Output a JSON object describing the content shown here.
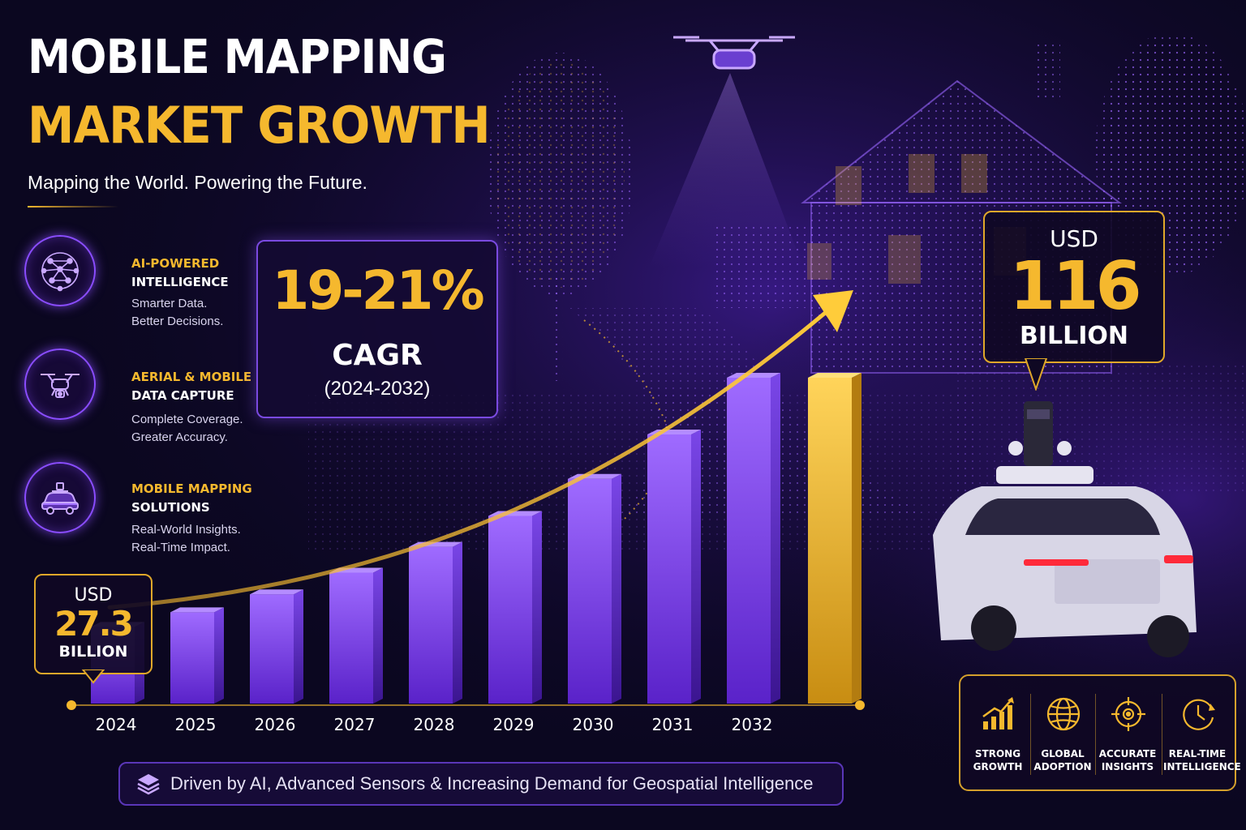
{
  "header": {
    "title_line1": "MOBILE MAPPING",
    "title_line2": "MARKET GROWTH",
    "subtitle": "Mapping the World. Powering the Future."
  },
  "features": [
    {
      "icon": "neural-network-icon",
      "title_accent": "AI-POWERED",
      "title": "INTELLIGENCE",
      "desc1": "Smarter Data.",
      "desc2": "Better Decisions."
    },
    {
      "icon": "drone-icon",
      "title_accent": "AERIAL & MOBILE",
      "title": "DATA CAPTURE",
      "desc1": "Complete Coverage.",
      "desc2": "Greater Accuracy."
    },
    {
      "icon": "mapping-car-icon",
      "title_accent": "MOBILE MAPPING",
      "title": "SOLUTIONS",
      "desc1": "Real-World Insights.",
      "desc2": "Real-Time Impact."
    }
  ],
  "cagr": {
    "value": "19-21%",
    "label": "CAGR",
    "period": "(2024-2032)"
  },
  "start_callout": {
    "currency": "USD",
    "value": "27.3",
    "unit": "BILLION"
  },
  "end_callout": {
    "currency": "USD",
    "value": "116",
    "unit": "BILLION"
  },
  "driver_text": "Driven by AI, Advanced Sensors & Increasing Demand for Geospatial Intelligence",
  "kpis": [
    {
      "icon": "growth-chart-icon",
      "line1": "STRONG",
      "line2": "GROWTH"
    },
    {
      "icon": "globe-icon",
      "line1": "GLOBAL",
      "line2": "ADOPTION"
    },
    {
      "icon": "target-icon",
      "line1": "ACCURATE",
      "line2": "INSIGHTS"
    },
    {
      "icon": "clock-icon",
      "line1": "REAL-TIME",
      "line2": "INTELLIGENCE"
    }
  ],
  "colors": {
    "accent_gold": "#f5b82e",
    "bar_purple": "#8a4dff",
    "background": "#0b0720"
  },
  "chart_data": {
    "type": "bar",
    "categories": [
      "2024",
      "2025",
      "2026",
      "2027",
      "2028",
      "2029",
      "2030",
      "2031",
      "2032"
    ],
    "values": [
      27.3,
      32.5,
      38.9,
      46.6,
      55.8,
      66.8,
      80.0,
      95.8,
      116
    ],
    "highlight_bar": {
      "value": 116
    },
    "trend_arrow": true,
    "ylim": [
      0,
      116
    ],
    "grid": false
  }
}
